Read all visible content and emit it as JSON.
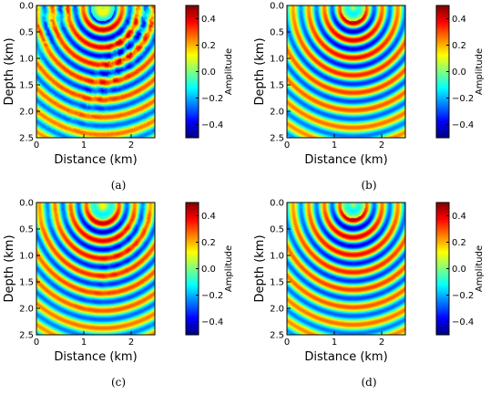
{
  "chart_data": [
    {
      "type": "heatmap",
      "caption": "(a)",
      "title": "",
      "xlabel": "Distance (km)",
      "ylabel": "Depth (km)",
      "xlim": [
        0,
        2.5
      ],
      "ylim": [
        0,
        2.5
      ],
      "y_inverted": true,
      "xticks": [
        "0",
        "1",
        "2"
      ],
      "yticks": [
        "0.0",
        "0.5",
        "1.0",
        "1.5",
        "2.0",
        "2.5"
      ],
      "colorbar": {
        "label": "Amplitude",
        "range": [
          -0.5,
          0.5
        ],
        "ticks": [
          "0.4",
          "0.2",
          "0.0",
          "−0.2",
          "−0.4"
        ],
        "colormap": "jet"
      },
      "wavefield": {
        "source_x": 1.4,
        "source_depth": 0.05,
        "wavelength": 0.33,
        "phase": 0.0,
        "noise": 0.45
      }
    },
    {
      "type": "heatmap",
      "caption": "(b)",
      "title": "",
      "xlabel": "Distance (km)",
      "ylabel": "Depth (km)",
      "xlim": [
        0,
        2.5
      ],
      "ylim": [
        0,
        2.5
      ],
      "y_inverted": true,
      "xticks": [
        "0",
        "1",
        "2"
      ],
      "yticks": [
        "0.0",
        "0.5",
        "1.0",
        "1.5",
        "2.0",
        "2.5"
      ],
      "colorbar": {
        "label": "Amplitude",
        "range": [
          -0.5,
          0.5
        ],
        "ticks": [
          "0.4",
          "0.2",
          "0.0",
          "−0.2",
          "−0.4"
        ],
        "colormap": "jet"
      },
      "wavefield": {
        "source_x": 1.4,
        "source_depth": 0.05,
        "wavelength": 0.33,
        "phase": 0.4,
        "noise": 0.0
      }
    },
    {
      "type": "heatmap",
      "caption": "(c)",
      "title": "",
      "xlabel": "Distance (km)",
      "ylabel": "Depth (km)",
      "xlim": [
        0,
        2.5
      ],
      "ylim": [
        0,
        2.5
      ],
      "y_inverted": true,
      "xticks": [
        "0",
        "1",
        "2"
      ],
      "yticks": [
        "0.0",
        "0.5",
        "1.0",
        "1.5",
        "2.0",
        "2.5"
      ],
      "colorbar": {
        "label": "Amplitude",
        "range": [
          -0.5,
          0.5
        ],
        "ticks": [
          "0.4",
          "0.2",
          "0.0",
          "−0.2",
          "−0.4"
        ],
        "colormap": "jet"
      },
      "wavefield": {
        "source_x": 1.4,
        "source_depth": 0.05,
        "wavelength": 0.33,
        "phase": 0.2,
        "noise": 0.12
      }
    },
    {
      "type": "heatmap",
      "caption": "(d)",
      "title": "",
      "xlabel": "Distance (km)",
      "ylabel": "Depth (km)",
      "xlim": [
        0,
        2.5
      ],
      "ylim": [
        0,
        2.5
      ],
      "y_inverted": true,
      "xticks": [
        "0",
        "1",
        "2"
      ],
      "yticks": [
        "0.0",
        "0.5",
        "1.0",
        "1.5",
        "2.0",
        "2.5"
      ],
      "colorbar": {
        "label": "Amplitude",
        "range": [
          -0.5,
          0.5
        ],
        "ticks": [
          "0.4",
          "0.2",
          "0.0",
          "−0.2",
          "−0.4"
        ],
        "colormap": "jet"
      },
      "wavefield": {
        "source_x": 1.4,
        "source_depth": 0.05,
        "wavelength": 0.33,
        "phase": 0.4,
        "noise": 0.0
      }
    }
  ]
}
